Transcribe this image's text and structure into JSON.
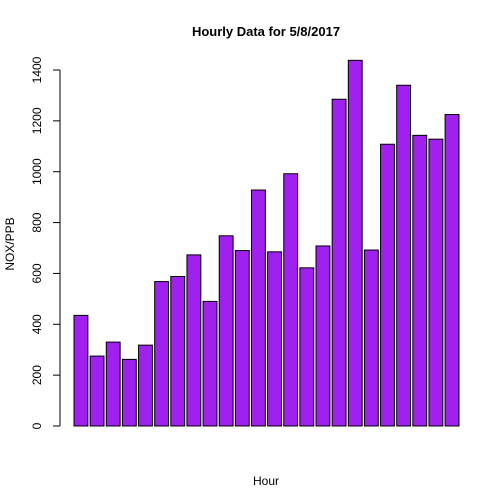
{
  "chart_data": {
    "type": "bar",
    "title": "Hourly Data for 5/8/2017",
    "xlabel": "Hour",
    "ylabel": "NOX/PPB",
    "ylim": [
      0,
      1400
    ],
    "yticks": [
      "0",
      "200",
      "400",
      "600",
      "800",
      "1000",
      "1200",
      "1400"
    ],
    "grid": false,
    "legend": "none",
    "bar_fill": "#a020f0",
    "bar_stroke": "#000000",
    "values": [
      435,
      275,
      330,
      262,
      318,
      568,
      588,
      673,
      490,
      748,
      690,
      928,
      685,
      992,
      622,
      708,
      1285,
      1438,
      692,
      1108,
      1340,
      1143,
      1128,
      1225
    ]
  }
}
